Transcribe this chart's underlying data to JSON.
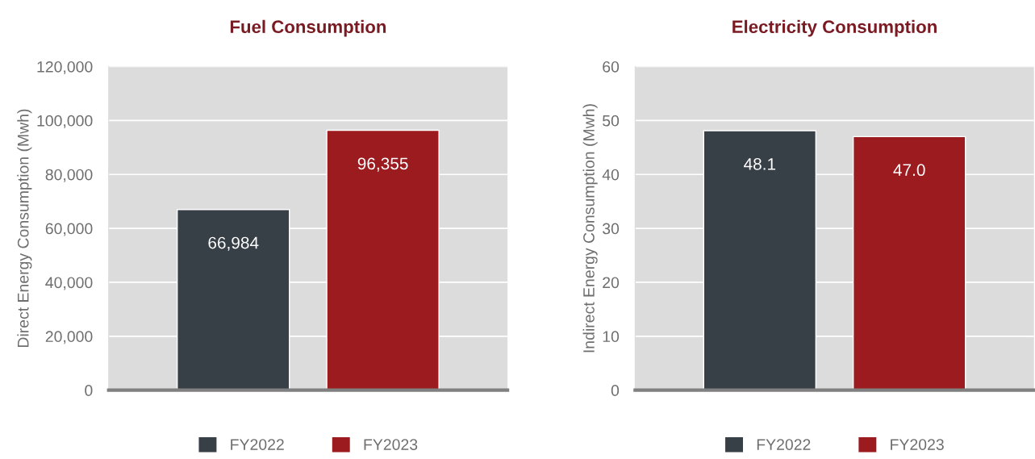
{
  "chart_data": [
    {
      "type": "bar",
      "title": "Fuel Consumption",
      "ylabel": "Direct Energy Consumption (Mwh)",
      "categories": [
        null
      ],
      "series": [
        {
          "name": "FY2022",
          "color": "#373f47",
          "values": [
            66984
          ],
          "value_labels": [
            "66,984"
          ]
        },
        {
          "name": "FY2023",
          "color": "#9b1b1f",
          "values": [
            96355
          ],
          "value_labels": [
            "96,355"
          ]
        }
      ],
      "ylim": [
        0,
        120000
      ],
      "yticks": [
        0,
        {
          "value": 20000,
          "label": "20,000"
        },
        {
          "value": 40000,
          "label": "40,000"
        },
        {
          "value": 60000,
          "label": "60,000"
        },
        {
          "value": 80000,
          "label": "80,000"
        },
        {
          "value": 100000,
          "label": "100,000"
        },
        {
          "value": 120000,
          "label": "120,000"
        }
      ],
      "grid": "y",
      "legend": "bottom"
    },
    {
      "type": "bar",
      "title": "Electricity Consumption",
      "ylabel": "Indirect Energy Consumption (Mwh)",
      "categories": [
        null
      ],
      "series": [
        {
          "name": "FY2022",
          "color": "#373f47",
          "values": [
            48.1
          ],
          "value_labels": [
            "48.1"
          ]
        },
        {
          "name": "FY2023",
          "color": "#9b1b1f",
          "values": [
            47.0
          ],
          "value_labels": [
            "47.0"
          ]
        }
      ],
      "ylim": [
        0,
        60
      ],
      "yticks": [
        0,
        10,
        20,
        30,
        40,
        50,
        60
      ],
      "grid": "y",
      "legend": "bottom"
    }
  ]
}
